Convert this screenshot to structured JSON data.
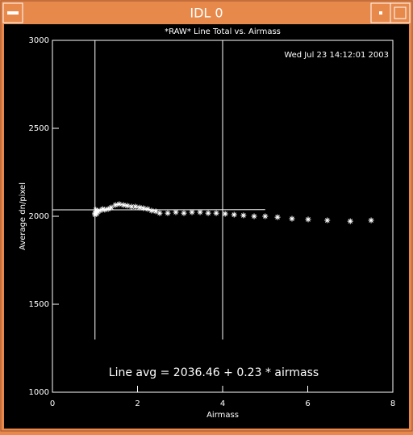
{
  "window": {
    "title": "IDL 0"
  },
  "chart_data": {
    "type": "scatter",
    "title": "*RAW* Line Total vs. Airmass",
    "subtitle": "Wed Jul 23 14:12:01 2003",
    "annotation": "Line avg = 2036.46 + 0.23 * airmass",
    "xlabel": "Airmass",
    "ylabel": "Average dn/pixel",
    "xlim": [
      0,
      8
    ],
    "ylim": [
      1000,
      3000
    ],
    "xticks": [
      0,
      2,
      4,
      6,
      8
    ],
    "yticks": [
      1000,
      1500,
      2000,
      2500,
      3000
    ],
    "color": "#ffffff",
    "x": [
      1.0,
      1.0,
      1.02,
      1.04,
      1.06,
      1.12,
      1.18,
      1.23,
      1.31,
      1.38,
      1.48,
      1.57,
      1.67,
      1.76,
      1.86,
      1.95,
      2.05,
      2.14,
      2.24,
      2.33,
      2.43,
      2.52,
      2.71,
      2.9,
      3.09,
      3.28,
      3.47,
      3.66,
      3.85,
      4.06,
      4.27,
      4.49,
      4.74,
      5.0,
      5.29,
      5.63,
      6.01,
      6.46,
      7.0,
      7.49
    ],
    "values": [
      2018,
      2009,
      2037,
      2014,
      2028,
      2032,
      2041,
      2037,
      2041,
      2050,
      2064,
      2069,
      2064,
      2060,
      2055,
      2055,
      2050,
      2046,
      2041,
      2032,
      2028,
      2018,
      2018,
      2023,
      2018,
      2023,
      2023,
      2018,
      2018,
      2014,
      2009,
      2005,
      2000,
      2000,
      1995,
      1986,
      1982,
      1977,
      1972,
      1977
    ],
    "fit_line": {
      "x": [
        0,
        5
      ],
      "values": [
        2036.46,
        2037.61
      ]
    },
    "markers": [
      {
        "x": 1,
        "y": [
          1300,
          3000
        ]
      },
      {
        "x": 4,
        "y": [
          1300,
          3000
        ]
      }
    ]
  }
}
